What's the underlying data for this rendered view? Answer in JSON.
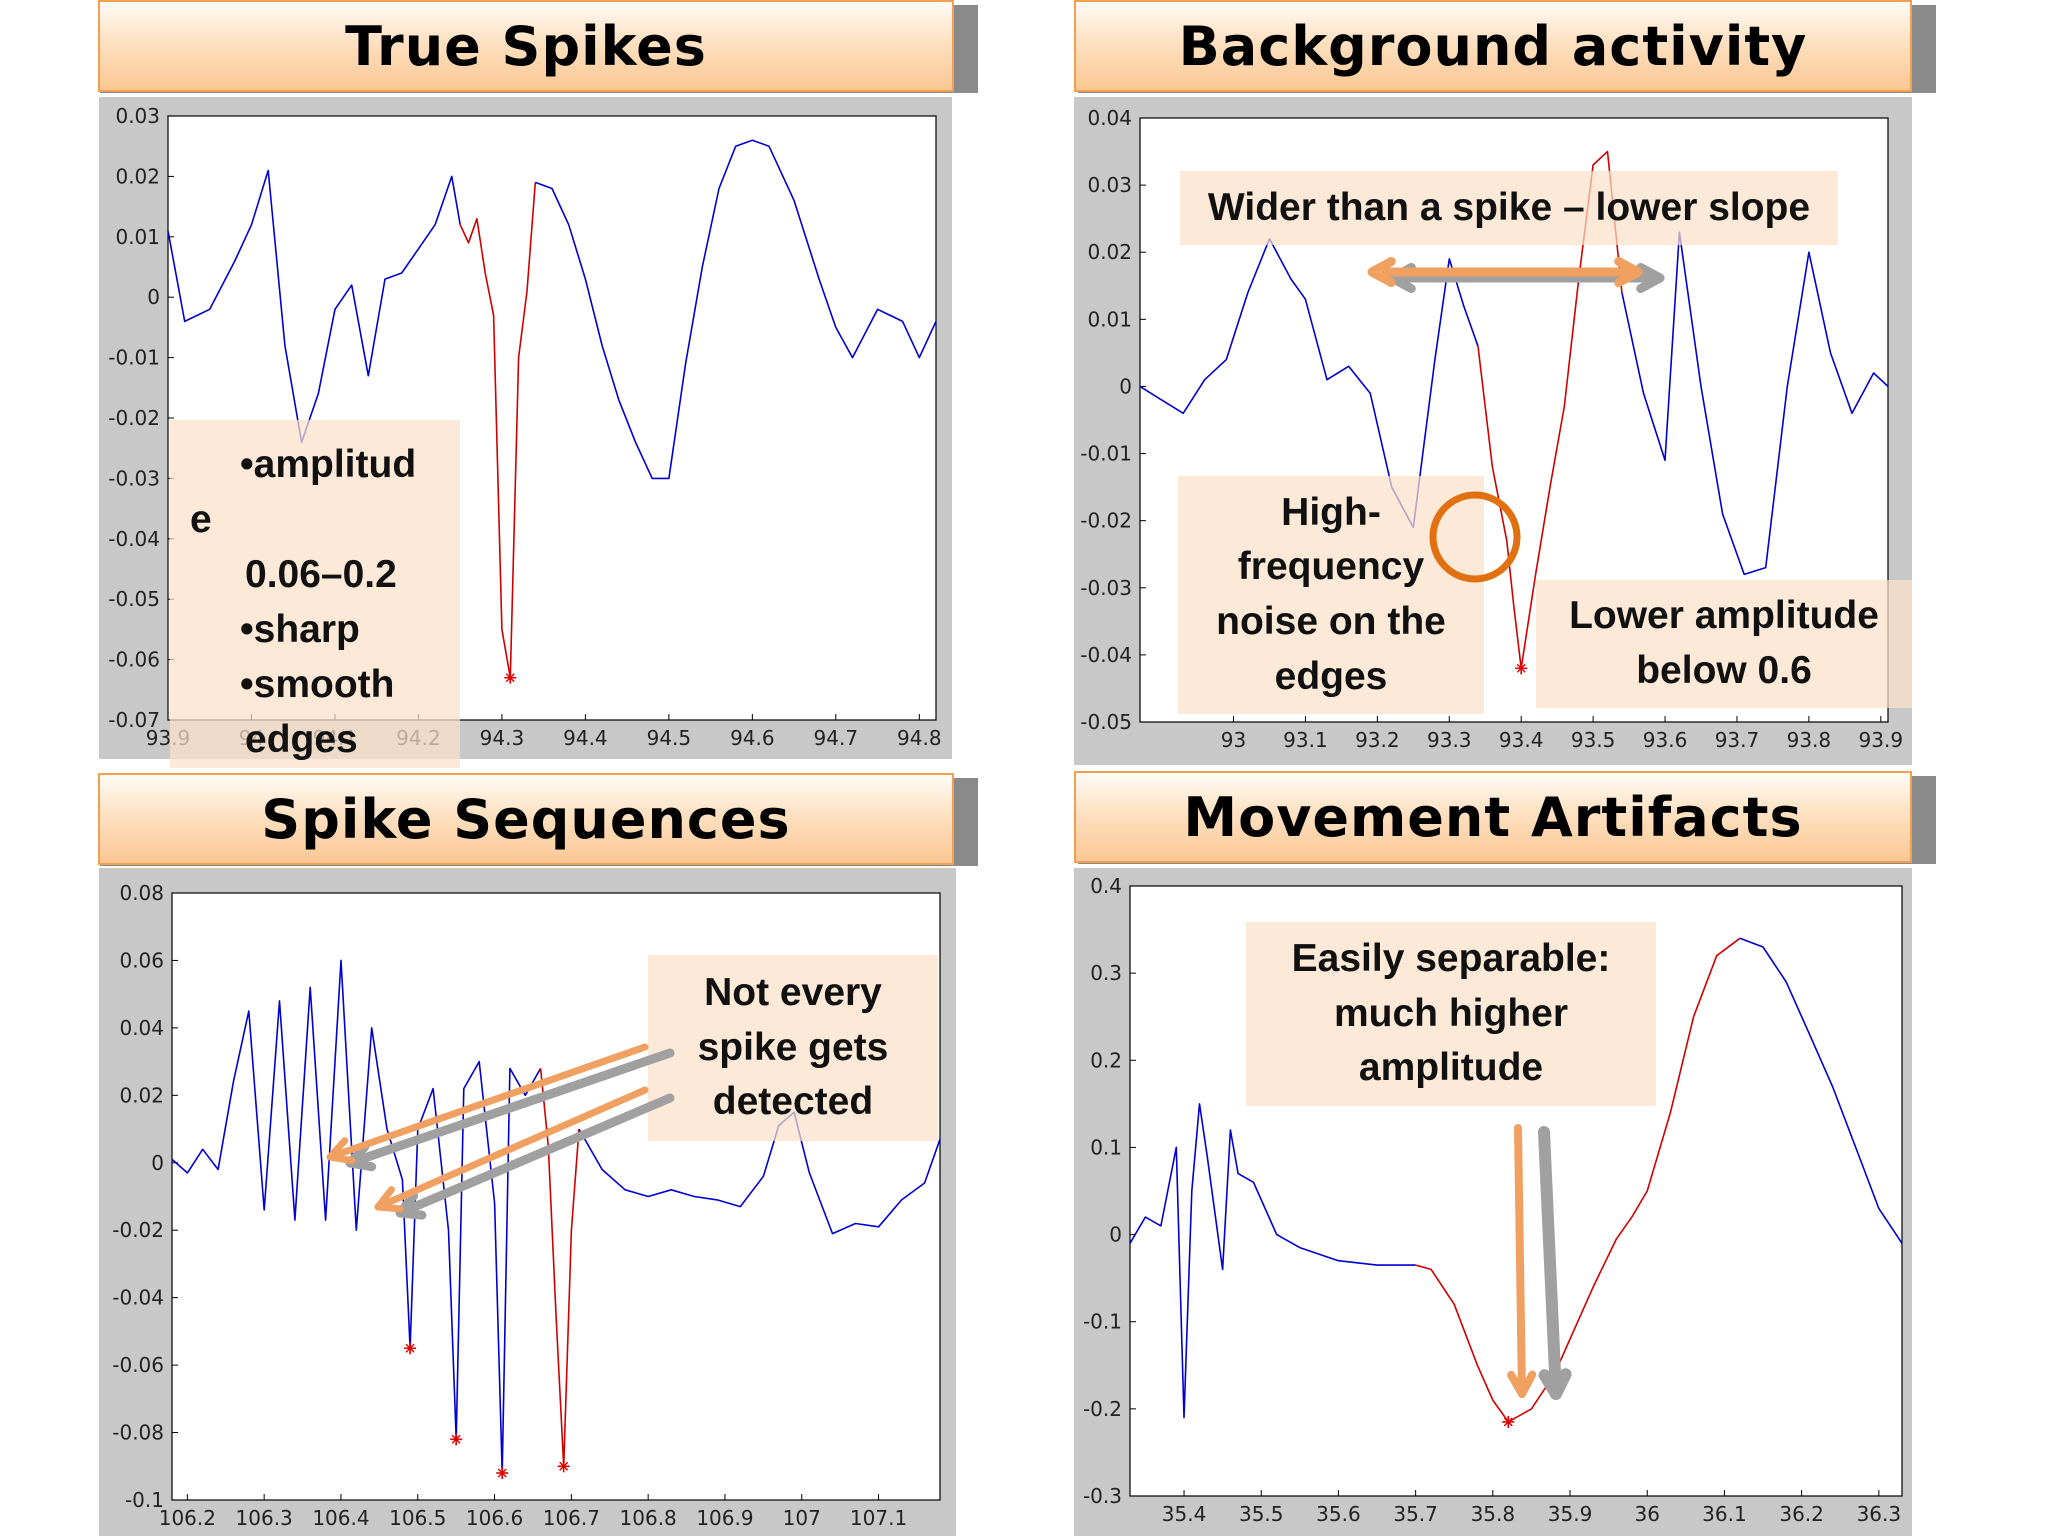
{
  "chart_data": [
    {
      "id": "tl",
      "type": "line",
      "title": "True Spikes",
      "xlim": [
        93.9,
        94.82
      ],
      "ylim": [
        -0.07,
        0.03
      ],
      "xticks": [
        "93.9",
        "94",
        "94.1",
        "94.2",
        "94.3",
        "94.4",
        "94.5",
        "94.6",
        "94.7",
        "94.8"
      ],
      "yticks": [
        "0.03",
        "0.02",
        "0.01",
        "0",
        "-0.01",
        "-0.02",
        "-0.03",
        "-0.04",
        "-0.05",
        "-0.06",
        "-0.07"
      ],
      "series": [
        {
          "color": "#0000d0",
          "x": [
            93.9,
            93.92,
            93.95,
            93.98,
            94.0,
            94.02,
            94.04,
            94.06,
            94.08,
            94.1,
            94.12,
            94.14,
            94.16,
            94.18,
            94.2,
            94.22,
            94.24,
            94.25
          ],
          "y": [
            0.011,
            -0.004,
            -0.002,
            0.006,
            0.012,
            0.021,
            -0.008,
            -0.024,
            -0.016,
            -0.002,
            0.002,
            -0.013,
            0.003,
            0.004,
            0.008,
            0.012,
            0.02,
            0.012
          ]
        },
        {
          "color": "#d00000",
          "x": [
            94.25,
            94.26,
            94.27,
            94.28,
            94.29,
            94.3,
            94.31,
            94.32,
            94.33,
            94.34
          ],
          "y": [
            0.012,
            0.009,
            0.013,
            0.004,
            -0.003,
            -0.055,
            -0.063,
            -0.01,
            0.001,
            0.019
          ]
        },
        {
          "color": "#0000d0",
          "x": [
            94.34,
            94.36,
            94.38,
            94.4,
            94.42,
            94.44,
            94.46,
            94.48,
            94.5,
            94.52,
            94.54,
            94.56,
            94.58,
            94.6,
            94.62,
            94.65,
            94.68,
            94.7,
            94.72,
            94.75,
            94.78,
            94.8,
            94.82
          ],
          "y": [
            0.019,
            0.018,
            0.012,
            0.003,
            -0.008,
            -0.017,
            -0.024,
            -0.03,
            -0.03,
            -0.011,
            0.005,
            0.018,
            0.025,
            0.026,
            0.025,
            0.016,
            0.003,
            -0.005,
            -0.01,
            -0.002,
            -0.004,
            -0.01,
            -0.004
          ]
        }
      ],
      "markers": [
        {
          "x": 94.31,
          "y": -0.063
        }
      ]
    },
    {
      "id": "tr",
      "type": "line",
      "title": "Background activity",
      "xlim": [
        92.87,
        93.91
      ],
      "ylim": [
        -0.05,
        0.04
      ],
      "xticks": [
        "93",
        "93.1",
        "93.2",
        "93.3",
        "93.4",
        "93.5",
        "93.6",
        "93.7",
        "93.8",
        "93.9"
      ],
      "yticks": [
        "0.04",
        "0.03",
        "0.02",
        "0.01",
        "0",
        "-0.01",
        "-0.02",
        "-0.03",
        "-0.04",
        "-0.05"
      ],
      "series": [
        {
          "color": "#0000d0",
          "x": [
            92.87,
            92.9,
            92.93,
            92.96,
            92.99,
            93.02,
            93.05,
            93.08,
            93.1,
            93.13,
            93.16,
            93.19,
            93.22,
            93.25,
            93.28,
            93.3,
            93.32,
            93.34
          ],
          "y": [
            0.0,
            -0.002,
            -0.004,
            0.001,
            0.004,
            0.014,
            0.022,
            0.016,
            0.013,
            0.001,
            0.003,
            -0.001,
            -0.015,
            -0.021,
            0.004,
            0.019,
            0.012,
            0.006
          ]
        },
        {
          "color": "#d00000",
          "x": [
            93.34,
            93.36,
            93.38,
            93.39,
            93.4,
            93.42,
            93.44,
            93.46,
            93.48,
            93.5,
            93.52,
            93.54
          ],
          "y": [
            0.006,
            -0.012,
            -0.023,
            -0.033,
            -0.042,
            -0.028,
            -0.015,
            -0.003,
            0.016,
            0.033,
            0.035,
            0.014
          ]
        },
        {
          "color": "#0000d0",
          "x": [
            93.54,
            93.57,
            93.6,
            93.62,
            93.65,
            93.68,
            93.71,
            93.74,
            93.77,
            93.8,
            93.83,
            93.86,
            93.89,
            93.91
          ],
          "y": [
            0.014,
            -0.001,
            -0.011,
            0.023,
            0.0,
            -0.019,
            -0.028,
            -0.027,
            0.0,
            0.02,
            0.005,
            -0.004,
            0.002,
            0.0
          ]
        }
      ],
      "markers": [
        {
          "x": 93.4,
          "y": -0.042
        }
      ]
    },
    {
      "id": "bl",
      "type": "line",
      "title": "Spike Sequences",
      "xlim": [
        106.18,
        107.18
      ],
      "ylim": [
        -0.1,
        0.08
      ],
      "xticks": [
        "106.2",
        "106.3",
        "106.4",
        "106.5",
        "106.6",
        "106.7",
        "106.8",
        "106.9",
        "107",
        "107.1"
      ],
      "yticks": [
        "0.08",
        "0.06",
        "0.04",
        "0.02",
        "0",
        "-0.02",
        "-0.04",
        "-0.06",
        "-0.08",
        "-0.1"
      ],
      "series": [
        {
          "color": "#0000d0",
          "x": [
            106.18,
            106.2,
            106.22,
            106.24,
            106.26,
            106.28,
            106.3,
            106.32,
            106.34,
            106.36,
            106.38,
            106.4,
            106.42,
            106.44,
            106.46,
            106.48,
            106.49,
            106.5,
            106.52,
            106.54,
            106.55,
            106.56,
            106.58,
            106.6,
            106.61,
            106.62,
            106.64,
            106.66
          ],
          "y": [
            0.001,
            -0.003,
            0.004,
            -0.002,
            0.024,
            0.045,
            -0.014,
            0.048,
            -0.017,
            0.052,
            -0.017,
            0.06,
            -0.02,
            0.04,
            0.01,
            -0.005,
            -0.055,
            0.01,
            0.022,
            -0.02,
            -0.082,
            0.022,
            0.03,
            -0.012,
            -0.092,
            0.028,
            0.02,
            0.028
          ]
        },
        {
          "color": "#d00000",
          "x": [
            106.66,
            106.67,
            106.68,
            106.69,
            106.7,
            106.71
          ],
          "y": [
            0.028,
            0.005,
            -0.045,
            -0.09,
            -0.02,
            0.01
          ]
        },
        {
          "color": "#0000d0",
          "x": [
            106.71,
            106.74,
            106.77,
            106.8,
            106.83,
            106.86,
            106.89,
            106.92,
            106.95,
            106.97,
            106.99,
            107.01,
            107.04,
            107.07,
            107.1,
            107.13,
            107.16,
            107.18
          ],
          "y": [
            0.01,
            -0.002,
            -0.008,
            -0.01,
            -0.008,
            -0.01,
            -0.011,
            -0.013,
            -0.004,
            0.011,
            0.015,
            -0.003,
            -0.021,
            -0.018,
            -0.019,
            -0.011,
            -0.006,
            0.007
          ]
        }
      ],
      "markers": [
        {
          "x": 106.49,
          "y": -0.055
        },
        {
          "x": 106.55,
          "y": -0.082
        },
        {
          "x": 106.61,
          "y": -0.092
        },
        {
          "x": 106.69,
          "y": -0.09
        }
      ]
    },
    {
      "id": "br",
      "type": "line",
      "title": "Movement Artifacts",
      "xlim": [
        35.33,
        36.33
      ],
      "ylim": [
        -0.3,
        0.4
      ],
      "xticks": [
        "35.4",
        "35.5",
        "35.6",
        "35.7",
        "35.8",
        "35.9",
        "36",
        "36.1",
        "36.2",
        "36.3"
      ],
      "yticks": [
        "0.4",
        "0.3",
        "0.2",
        "0.1",
        "0",
        "-0.1",
        "-0.2",
        "-0.3"
      ],
      "series": [
        {
          "color": "#0000d0",
          "x": [
            35.33,
            35.35,
            35.37,
            35.39,
            35.4,
            35.41,
            35.42,
            35.43,
            35.45,
            35.46,
            35.47,
            35.49,
            35.52,
            35.55,
            35.6,
            35.65,
            35.7
          ],
          "y": [
            -0.01,
            0.02,
            0.01,
            0.1,
            -0.21,
            0.05,
            0.15,
            0.09,
            -0.04,
            0.12,
            0.07,
            0.06,
            0.0,
            -0.015,
            -0.03,
            -0.035,
            -0.035
          ]
        },
        {
          "color": "#d00000",
          "x": [
            35.7,
            35.72,
            35.75,
            35.78,
            35.8,
            35.82,
            35.85,
            35.88,
            35.9,
            35.93,
            35.96,
            35.98,
            36.0,
            36.03,
            36.06,
            36.09,
            36.12
          ],
          "y": [
            -0.035,
            -0.04,
            -0.08,
            -0.15,
            -0.19,
            -0.215,
            -0.2,
            -0.16,
            -0.12,
            -0.06,
            -0.005,
            0.02,
            0.05,
            0.14,
            0.25,
            0.32,
            0.34
          ]
        },
        {
          "color": "#0000d0",
          "x": [
            36.12,
            36.15,
            36.18,
            36.21,
            36.24,
            36.27,
            36.3,
            36.33
          ],
          "y": [
            0.34,
            0.33,
            0.29,
            0.23,
            0.17,
            0.1,
            0.03,
            -0.01
          ]
        }
      ],
      "markers": [
        {
          "x": 35.82,
          "y": -0.215
        }
      ]
    }
  ],
  "panels": {
    "tl": {
      "title": "True Spikes",
      "bullets": [
        "•amplitud",
        "e",
        "0.06–0.2",
        "•sharp",
        "•smooth",
        "edges"
      ]
    },
    "tr": {
      "title": "Background activity",
      "callout_top": "Wider than a spike – lower slope",
      "callout_left": [
        "High-",
        "frequency",
        "noise on the",
        "edges"
      ],
      "callout_right": [
        "Lower amplitude",
        "below 0.6"
      ]
    },
    "bl": {
      "title": "Spike Sequences",
      "callout": [
        "Not every",
        "spike gets",
        "detected"
      ]
    },
    "br": {
      "title": "Movement Artifacts",
      "callout": [
        "Easily separable:",
        "much higher",
        "amplitude"
      ]
    }
  },
  "colors": {
    "blue_trace": "#0000d0",
    "red_trace": "#d00000",
    "arrow_orange": "#f0a060",
    "arrow_gray": "#a0a0a0",
    "circle_orange": "#e07010"
  }
}
